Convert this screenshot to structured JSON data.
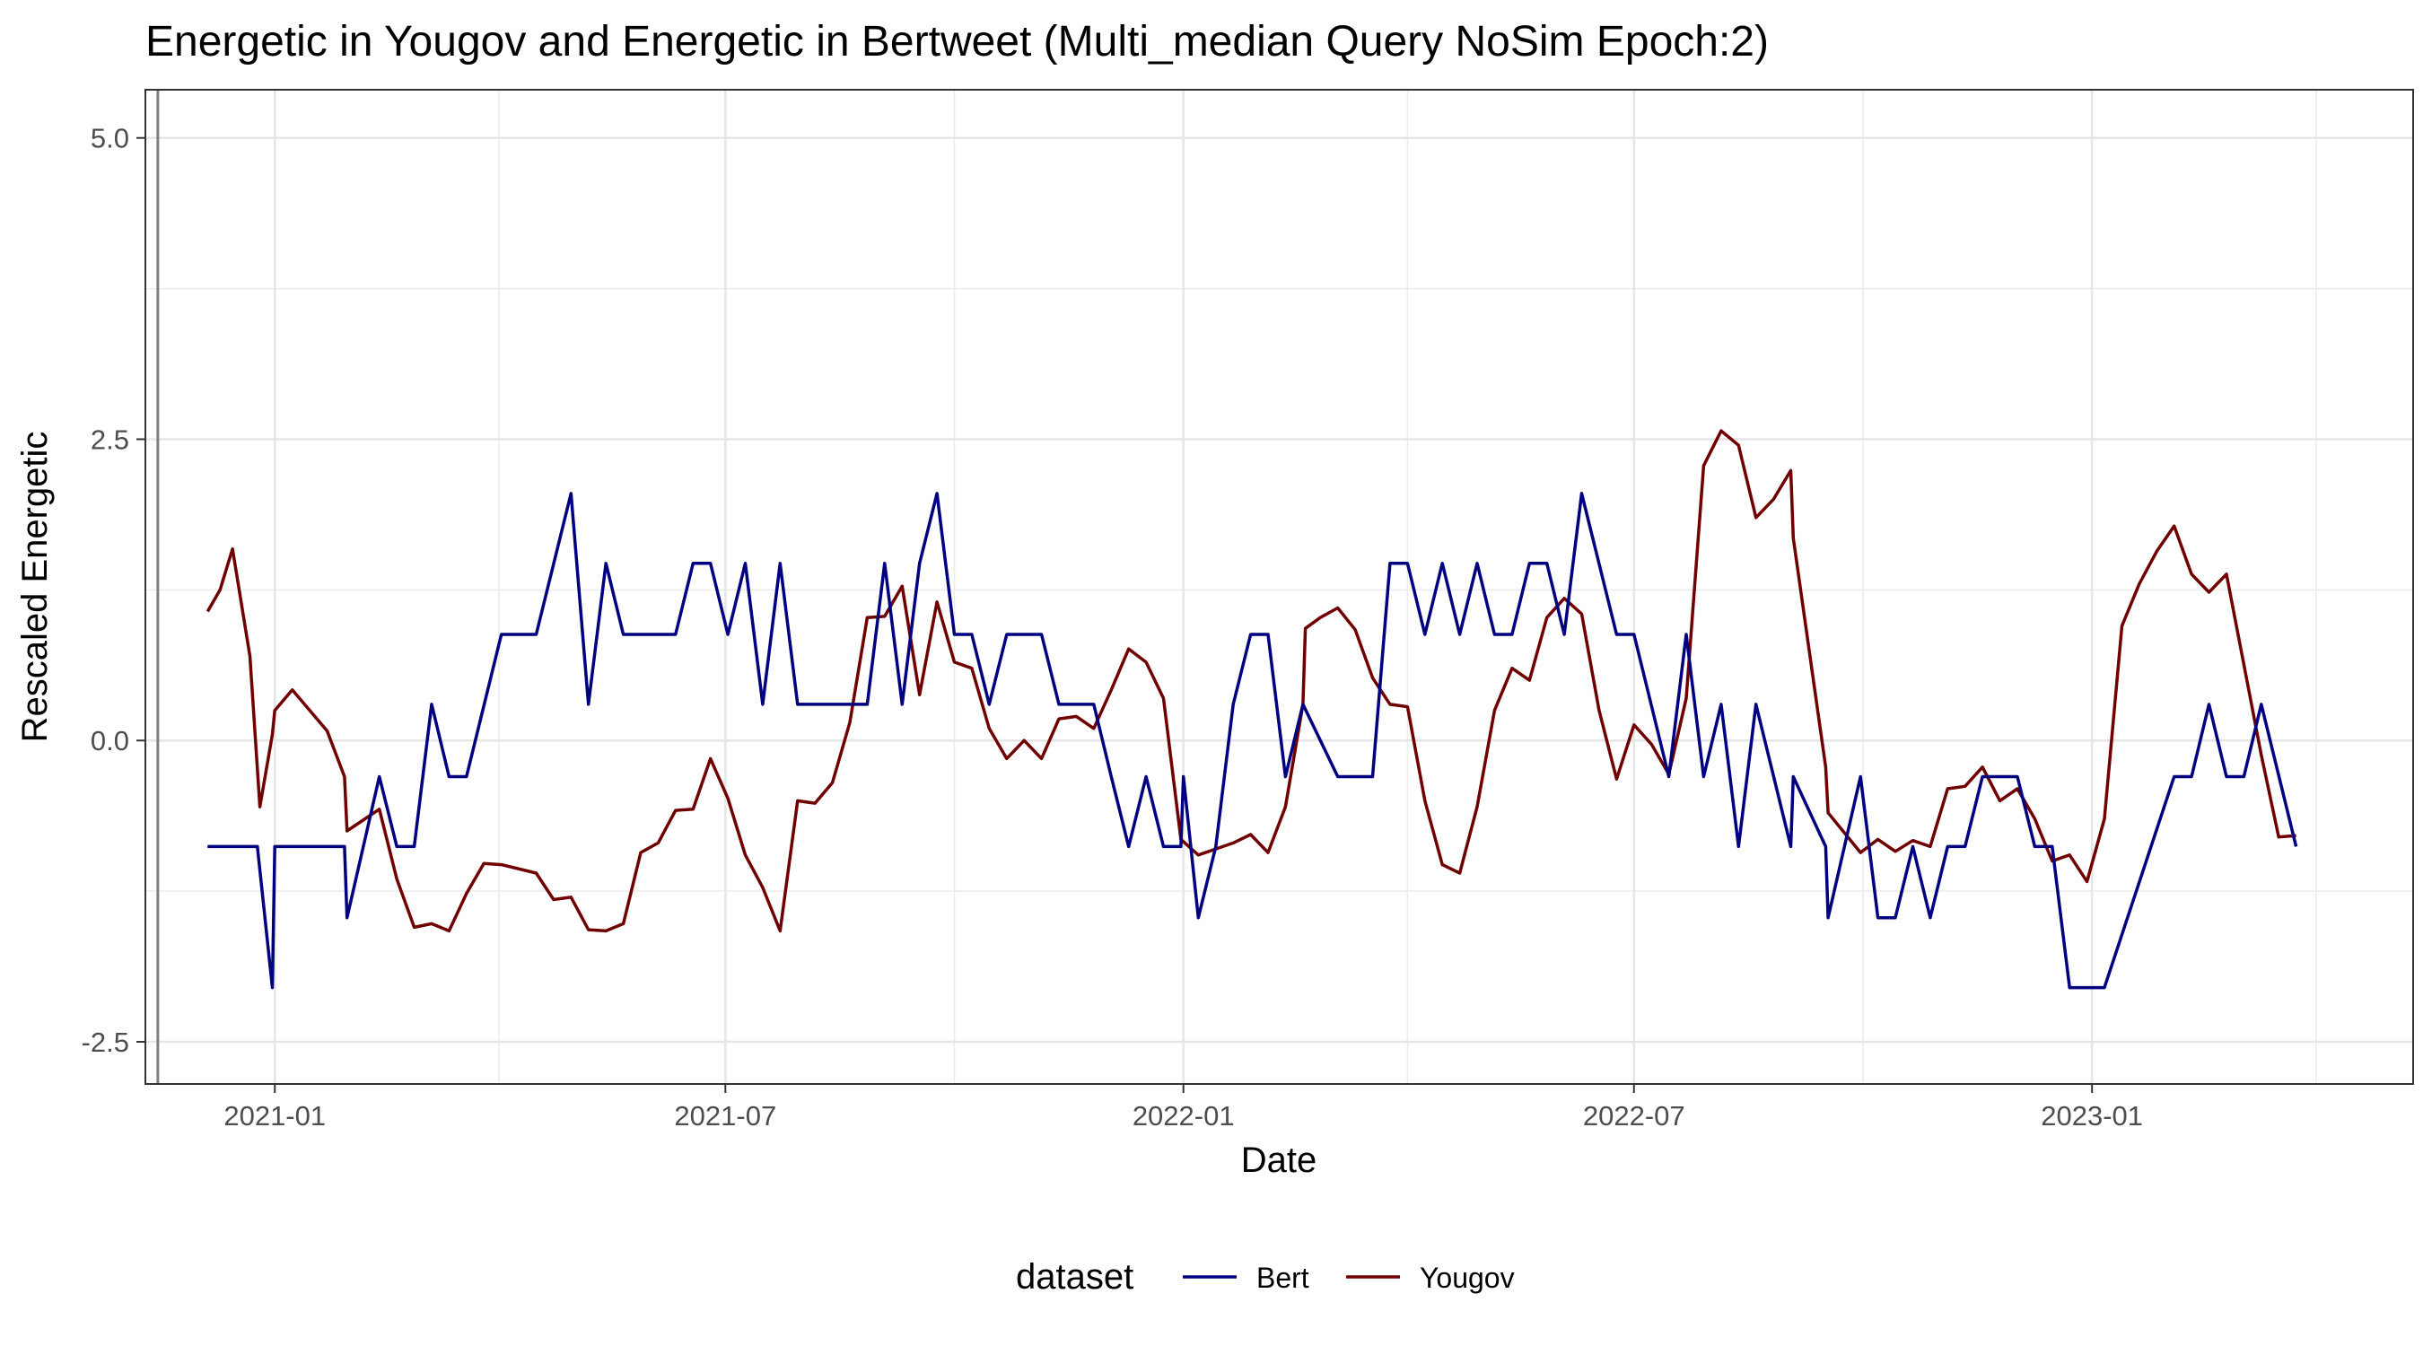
{
  "chart_data": {
    "type": "line",
    "title": "Energetic in Yougov and Energetic in Bertweet (Multi_median Query NoSim Epoch:2)",
    "xlabel": "Date",
    "ylabel": "Rescaled  Energetic",
    "x_ticks": [
      "2021-01",
      "2021-07",
      "2022-01",
      "2022-07",
      "2023-01"
    ],
    "y_ticks": [
      "-2.5",
      "0.0",
      "2.5",
      "5.0"
    ],
    "xlim": [
      "2020-11-10",
      "2023-05-10"
    ],
    "ylim": [
      -2.85,
      5.4
    ],
    "vline": "2020-11-15",
    "grid": true,
    "legend": {
      "title": "dataset",
      "position": "bottom"
    },
    "colors": {
      "Bert": "#000080",
      "Yougov": "#700000",
      "vline": "#808080"
    },
    "series": [
      {
        "name": "Bert",
        "points": [
          [
            "2020-12-05",
            -0.88
          ],
          [
            "2020-12-10",
            -0.88
          ],
          [
            "2020-12-15",
            -0.88
          ],
          [
            "2020-12-20",
            -0.88
          ],
          [
            "2020-12-25",
            -0.88
          ],
          [
            "2020-12-31",
            -2.05
          ],
          [
            "2021-01-01",
            -0.88
          ],
          [
            "2021-01-08",
            -0.88
          ],
          [
            "2021-01-15",
            -0.88
          ],
          [
            "2021-01-22",
            -0.88
          ],
          [
            "2021-01-29",
            -0.88
          ],
          [
            "2021-01-30",
            -1.47
          ],
          [
            "2021-02-12",
            -0.3
          ],
          [
            "2021-02-19",
            -0.88
          ],
          [
            "2021-02-26",
            -0.88
          ],
          [
            "2021-03-05",
            0.3
          ],
          [
            "2021-03-12",
            -0.3
          ],
          [
            "2021-03-19",
            -0.3
          ],
          [
            "2021-04-02",
            0.88
          ],
          [
            "2021-04-16",
            0.88
          ],
          [
            "2021-04-30",
            2.05
          ],
          [
            "2021-05-07",
            0.3
          ],
          [
            "2021-05-14",
            1.47
          ],
          [
            "2021-05-21",
            0.88
          ],
          [
            "2021-06-11",
            0.88
          ],
          [
            "2021-06-18",
            1.47
          ],
          [
            "2021-06-25",
            1.47
          ],
          [
            "2021-07-02",
            0.88
          ],
          [
            "2021-07-09",
            1.47
          ],
          [
            "2021-07-16",
            0.3
          ],
          [
            "2021-07-23",
            1.47
          ],
          [
            "2021-07-30",
            0.3
          ],
          [
            "2021-08-27",
            0.3
          ],
          [
            "2021-09-03",
            1.47
          ],
          [
            "2021-09-10",
            0.3
          ],
          [
            "2021-09-17",
            1.47
          ],
          [
            "2021-09-24",
            2.05
          ],
          [
            "2021-10-01",
            0.88
          ],
          [
            "2021-10-08",
            0.88
          ],
          [
            "2021-10-15",
            0.3
          ],
          [
            "2021-10-22",
            0.88
          ],
          [
            "2021-11-05",
            0.88
          ],
          [
            "2021-11-12",
            0.3
          ],
          [
            "2021-11-26",
            0.3
          ],
          [
            "2021-12-03",
            -0.3
          ],
          [
            "2021-12-10",
            -0.88
          ],
          [
            "2021-12-17",
            -0.3
          ],
          [
            "2021-12-24",
            -0.88
          ],
          [
            "2021-12-31",
            -0.88
          ],
          [
            "2022-01-01",
            -0.3
          ],
          [
            "2022-01-07",
            -1.47
          ],
          [
            "2022-01-14",
            -0.88
          ],
          [
            "2022-01-21",
            0.3
          ],
          [
            "2022-01-28",
            0.88
          ],
          [
            "2022-02-04",
            0.88
          ],
          [
            "2022-02-11",
            -0.3
          ],
          [
            "2022-02-18",
            0.3
          ],
          [
            "2022-03-04",
            -0.3
          ],
          [
            "2022-03-18",
            -0.3
          ],
          [
            "2022-03-25",
            1.47
          ],
          [
            "2022-04-01",
            1.47
          ],
          [
            "2022-04-08",
            0.88
          ],
          [
            "2022-04-15",
            1.47
          ],
          [
            "2022-04-22",
            0.88
          ],
          [
            "2022-04-29",
            1.47
          ],
          [
            "2022-05-06",
            0.88
          ],
          [
            "2022-05-13",
            0.88
          ],
          [
            "2022-05-20",
            1.47
          ],
          [
            "2022-05-27",
            1.47
          ],
          [
            "2022-06-03",
            0.88
          ],
          [
            "2022-06-10",
            2.05
          ],
          [
            "2022-06-24",
            0.88
          ],
          [
            "2022-07-01",
            0.88
          ],
          [
            "2022-07-15",
            -0.3
          ],
          [
            "2022-07-22",
            0.88
          ],
          [
            "2022-07-29",
            -0.3
          ],
          [
            "2022-08-05",
            0.3
          ],
          [
            "2022-08-12",
            -0.88
          ],
          [
            "2022-08-19",
            0.3
          ],
          [
            "2022-09-02",
            -0.88
          ],
          [
            "2022-09-03",
            -0.3
          ],
          [
            "2022-09-16",
            -0.88
          ],
          [
            "2022-09-17",
            -1.47
          ],
          [
            "2022-09-30",
            -0.3
          ],
          [
            "2022-10-07",
            -1.47
          ],
          [
            "2022-10-14",
            -1.47
          ],
          [
            "2022-10-21",
            -0.88
          ],
          [
            "2022-10-28",
            -1.47
          ],
          [
            "2022-11-04",
            -0.88
          ],
          [
            "2022-11-11",
            -0.88
          ],
          [
            "2022-11-18",
            -0.3
          ],
          [
            "2022-12-02",
            -0.3
          ],
          [
            "2022-12-09",
            -0.88
          ],
          [
            "2022-12-16",
            -0.88
          ],
          [
            "2022-12-23",
            -2.05
          ],
          [
            "2023-01-06",
            -2.05
          ],
          [
            "2023-02-03",
            -0.3
          ],
          [
            "2023-02-10",
            -0.3
          ],
          [
            "2023-02-17",
            0.3
          ],
          [
            "2023-02-24",
            -0.3
          ],
          [
            "2023-03-03",
            -0.3
          ],
          [
            "2023-03-10",
            0.3
          ],
          [
            "2023-03-24",
            -0.88
          ]
        ]
      },
      {
        "name": "Yougov",
        "points": [
          [
            "2020-12-05",
            1.07
          ],
          [
            "2020-12-10",
            1.25
          ],
          [
            "2020-12-15",
            1.59
          ],
          [
            "2020-12-22",
            0.7
          ],
          [
            "2020-12-26",
            -0.55
          ],
          [
            "2020-12-31",
            0.05
          ],
          [
            "2021-01-01",
            0.25
          ],
          [
            "2021-01-08",
            0.42
          ],
          [
            "2021-01-22",
            0.08
          ],
          [
            "2021-01-29",
            -0.3
          ],
          [
            "2021-01-30",
            -0.75
          ],
          [
            "2021-02-12",
            -0.57
          ],
          [
            "2021-02-19",
            -1.15
          ],
          [
            "2021-02-26",
            -1.55
          ],
          [
            "2021-03-05",
            -1.52
          ],
          [
            "2021-03-12",
            -1.58
          ],
          [
            "2021-03-19",
            -1.27
          ],
          [
            "2021-03-26",
            -1.02
          ],
          [
            "2021-04-02",
            -1.03
          ],
          [
            "2021-04-16",
            -1.1
          ],
          [
            "2021-04-23",
            -1.32
          ],
          [
            "2021-04-30",
            -1.3
          ],
          [
            "2021-05-07",
            -1.57
          ],
          [
            "2021-05-14",
            -1.58
          ],
          [
            "2021-05-21",
            -1.52
          ],
          [
            "2021-05-28",
            -0.93
          ],
          [
            "2021-06-04",
            -0.85
          ],
          [
            "2021-06-11",
            -0.58
          ],
          [
            "2021-06-18",
            -0.57
          ],
          [
            "2021-06-25",
            -0.15
          ],
          [
            "2021-07-02",
            -0.48
          ],
          [
            "2021-07-09",
            -0.95
          ],
          [
            "2021-07-16",
            -1.22
          ],
          [
            "2021-07-23",
            -1.58
          ],
          [
            "2021-07-30",
            -0.5
          ],
          [
            "2021-08-06",
            -0.52
          ],
          [
            "2021-08-13",
            -0.35
          ],
          [
            "2021-08-20",
            0.15
          ],
          [
            "2021-08-27",
            1.02
          ],
          [
            "2021-09-03",
            1.03
          ],
          [
            "2021-09-10",
            1.28
          ],
          [
            "2021-09-17",
            0.38
          ],
          [
            "2021-09-24",
            1.15
          ],
          [
            "2021-10-01",
            0.65
          ],
          [
            "2021-10-08",
            0.6
          ],
          [
            "2021-10-15",
            0.1
          ],
          [
            "2021-10-22",
            -0.15
          ],
          [
            "2021-10-29",
            0.0
          ],
          [
            "2021-11-05",
            -0.15
          ],
          [
            "2021-11-12",
            0.18
          ],
          [
            "2021-11-19",
            0.2
          ],
          [
            "2021-11-26",
            0.1
          ],
          [
            "2021-12-03",
            0.42
          ],
          [
            "2021-12-10",
            0.76
          ],
          [
            "2021-12-17",
            0.65
          ],
          [
            "2021-12-24",
            0.35
          ],
          [
            "2021-12-31",
            -0.82
          ],
          [
            "2022-01-07",
            -0.95
          ],
          [
            "2022-01-14",
            -0.9
          ],
          [
            "2022-01-21",
            -0.85
          ],
          [
            "2022-01-28",
            -0.78
          ],
          [
            "2022-02-04",
            -0.93
          ],
          [
            "2022-02-11",
            -0.55
          ],
          [
            "2022-02-18",
            0.3
          ],
          [
            "2022-02-19",
            0.93
          ],
          [
            "2022-02-25",
            1.02
          ],
          [
            "2022-03-04",
            1.1
          ],
          [
            "2022-03-11",
            0.92
          ],
          [
            "2022-03-18",
            0.52
          ],
          [
            "2022-03-25",
            0.3
          ],
          [
            "2022-04-01",
            0.28
          ],
          [
            "2022-04-08",
            -0.5
          ],
          [
            "2022-04-15",
            -1.03
          ],
          [
            "2022-04-22",
            -1.1
          ],
          [
            "2022-04-29",
            -0.55
          ],
          [
            "2022-05-06",
            0.25
          ],
          [
            "2022-05-13",
            0.6
          ],
          [
            "2022-05-20",
            0.5
          ],
          [
            "2022-05-27",
            1.02
          ],
          [
            "2022-06-03",
            1.18
          ],
          [
            "2022-06-10",
            1.05
          ],
          [
            "2022-06-17",
            0.25
          ],
          [
            "2022-06-24",
            -0.32
          ],
          [
            "2022-07-01",
            0.13
          ],
          [
            "2022-07-08",
            -0.03
          ],
          [
            "2022-07-15",
            -0.28
          ],
          [
            "2022-07-22",
            0.35
          ],
          [
            "2022-07-29",
            2.28
          ],
          [
            "2022-08-05",
            2.57
          ],
          [
            "2022-08-12",
            2.45
          ],
          [
            "2022-08-19",
            1.85
          ],
          [
            "2022-08-26",
            2.0
          ],
          [
            "2022-09-02",
            2.24
          ],
          [
            "2022-09-03",
            1.68
          ],
          [
            "2022-09-16",
            -0.22
          ],
          [
            "2022-09-17",
            -0.6
          ],
          [
            "2022-09-30",
            -0.93
          ],
          [
            "2022-10-07",
            -0.82
          ],
          [
            "2022-10-14",
            -0.92
          ],
          [
            "2022-10-21",
            -0.83
          ],
          [
            "2022-10-28",
            -0.88
          ],
          [
            "2022-11-04",
            -0.4
          ],
          [
            "2022-11-11",
            -0.38
          ],
          [
            "2022-11-18",
            -0.22
          ],
          [
            "2022-11-25",
            -0.5
          ],
          [
            "2022-12-02",
            -0.4
          ],
          [
            "2022-12-09",
            -0.65
          ],
          [
            "2022-12-16",
            -1.0
          ],
          [
            "2022-12-23",
            -0.95
          ],
          [
            "2022-12-30",
            -1.17
          ],
          [
            "2023-01-06",
            -0.65
          ],
          [
            "2023-01-13",
            0.95
          ],
          [
            "2023-01-20",
            1.3
          ],
          [
            "2023-01-27",
            1.57
          ],
          [
            "2023-02-03",
            1.78
          ],
          [
            "2023-02-10",
            1.38
          ],
          [
            "2023-02-17",
            1.23
          ],
          [
            "2023-02-24",
            1.38
          ],
          [
            "2023-03-10",
            -0.12
          ],
          [
            "2023-03-17",
            -0.8
          ],
          [
            "2023-03-24",
            -0.79
          ]
        ]
      }
    ]
  }
}
